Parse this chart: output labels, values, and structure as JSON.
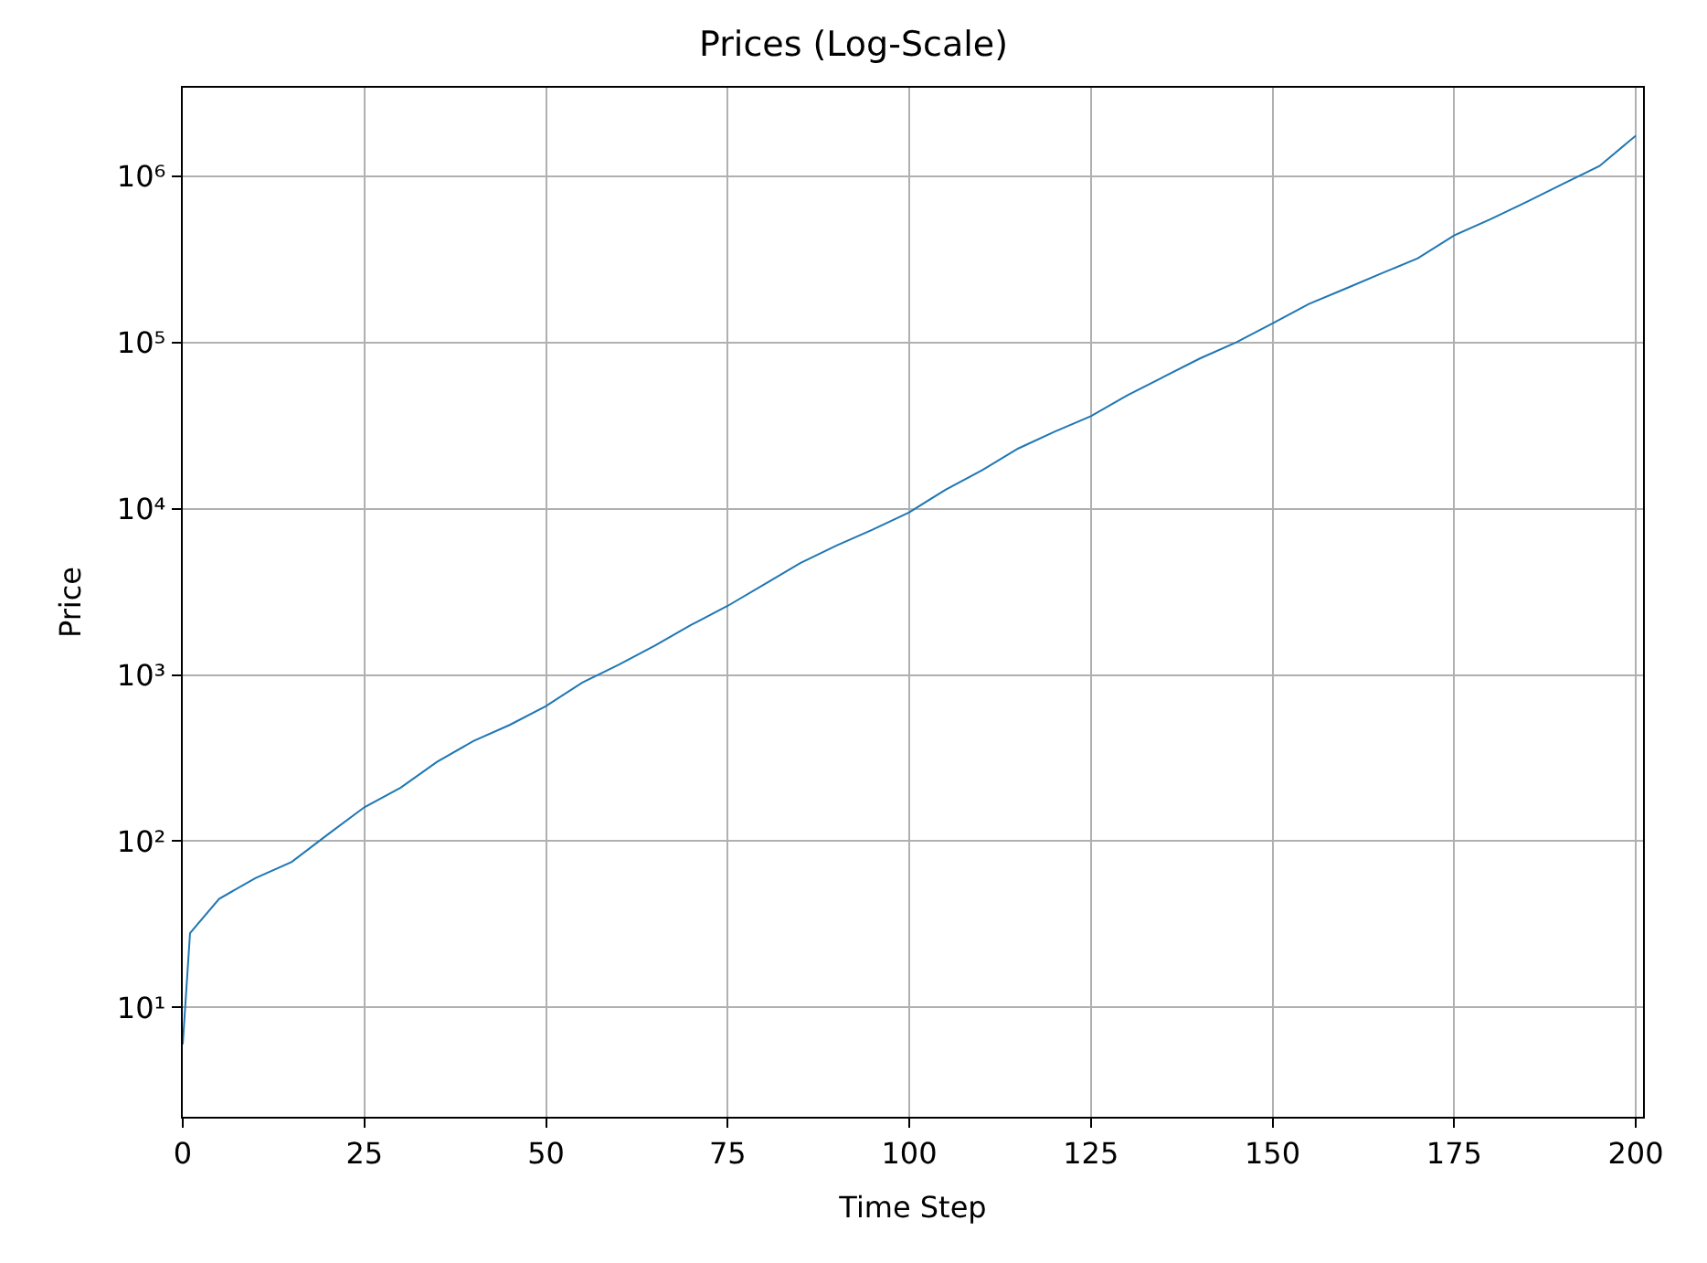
{
  "chart_data": {
    "type": "line",
    "title": "Prices (Log-Scale)",
    "xlabel": "Time Step",
    "ylabel": "Price",
    "log": "y",
    "grid": true,
    "xlim": [
      0,
      201
    ],
    "xticks": [
      0,
      25,
      50,
      75,
      100,
      125,
      150,
      175,
      200
    ],
    "ylim": [
      2.2,
      3400000
    ],
    "yticks": [
      {
        "value": 10,
        "label": "10¹"
      },
      {
        "value": 100,
        "label": "10²"
      },
      {
        "value": 1000,
        "label": "10³"
      },
      {
        "value": 10000,
        "label": "10⁴"
      },
      {
        "value": 100000,
        "label": "10⁵"
      },
      {
        "value": 1000000,
        "label": "10⁶"
      }
    ],
    "x": [
      0,
      1,
      5,
      10,
      15,
      20,
      25,
      30,
      35,
      40,
      45,
      50,
      55,
      60,
      65,
      70,
      75,
      80,
      85,
      90,
      95,
      100,
      105,
      110,
      115,
      120,
      125,
      130,
      135,
      140,
      145,
      150,
      155,
      160,
      165,
      170,
      175,
      180,
      185,
      190,
      195,
      200
    ],
    "series": [
      {
        "color": "#1f77b4",
        "values": [
          6,
          28,
          45,
          60,
          75,
          110,
          160,
          210,
          300,
          400,
          500,
          650,
          900,
          1150,
          1500,
          2000,
          2600,
          3500,
          4700,
          6000,
          7500,
          9500,
          13000,
          17000,
          23000,
          29000,
          36000,
          48000,
          62000,
          80000,
          100000,
          130000,
          170000,
          210000,
          260000,
          320000,
          440000,
          550000,
          700000,
          900000,
          1150000,
          1750000
        ]
      }
    ]
  }
}
